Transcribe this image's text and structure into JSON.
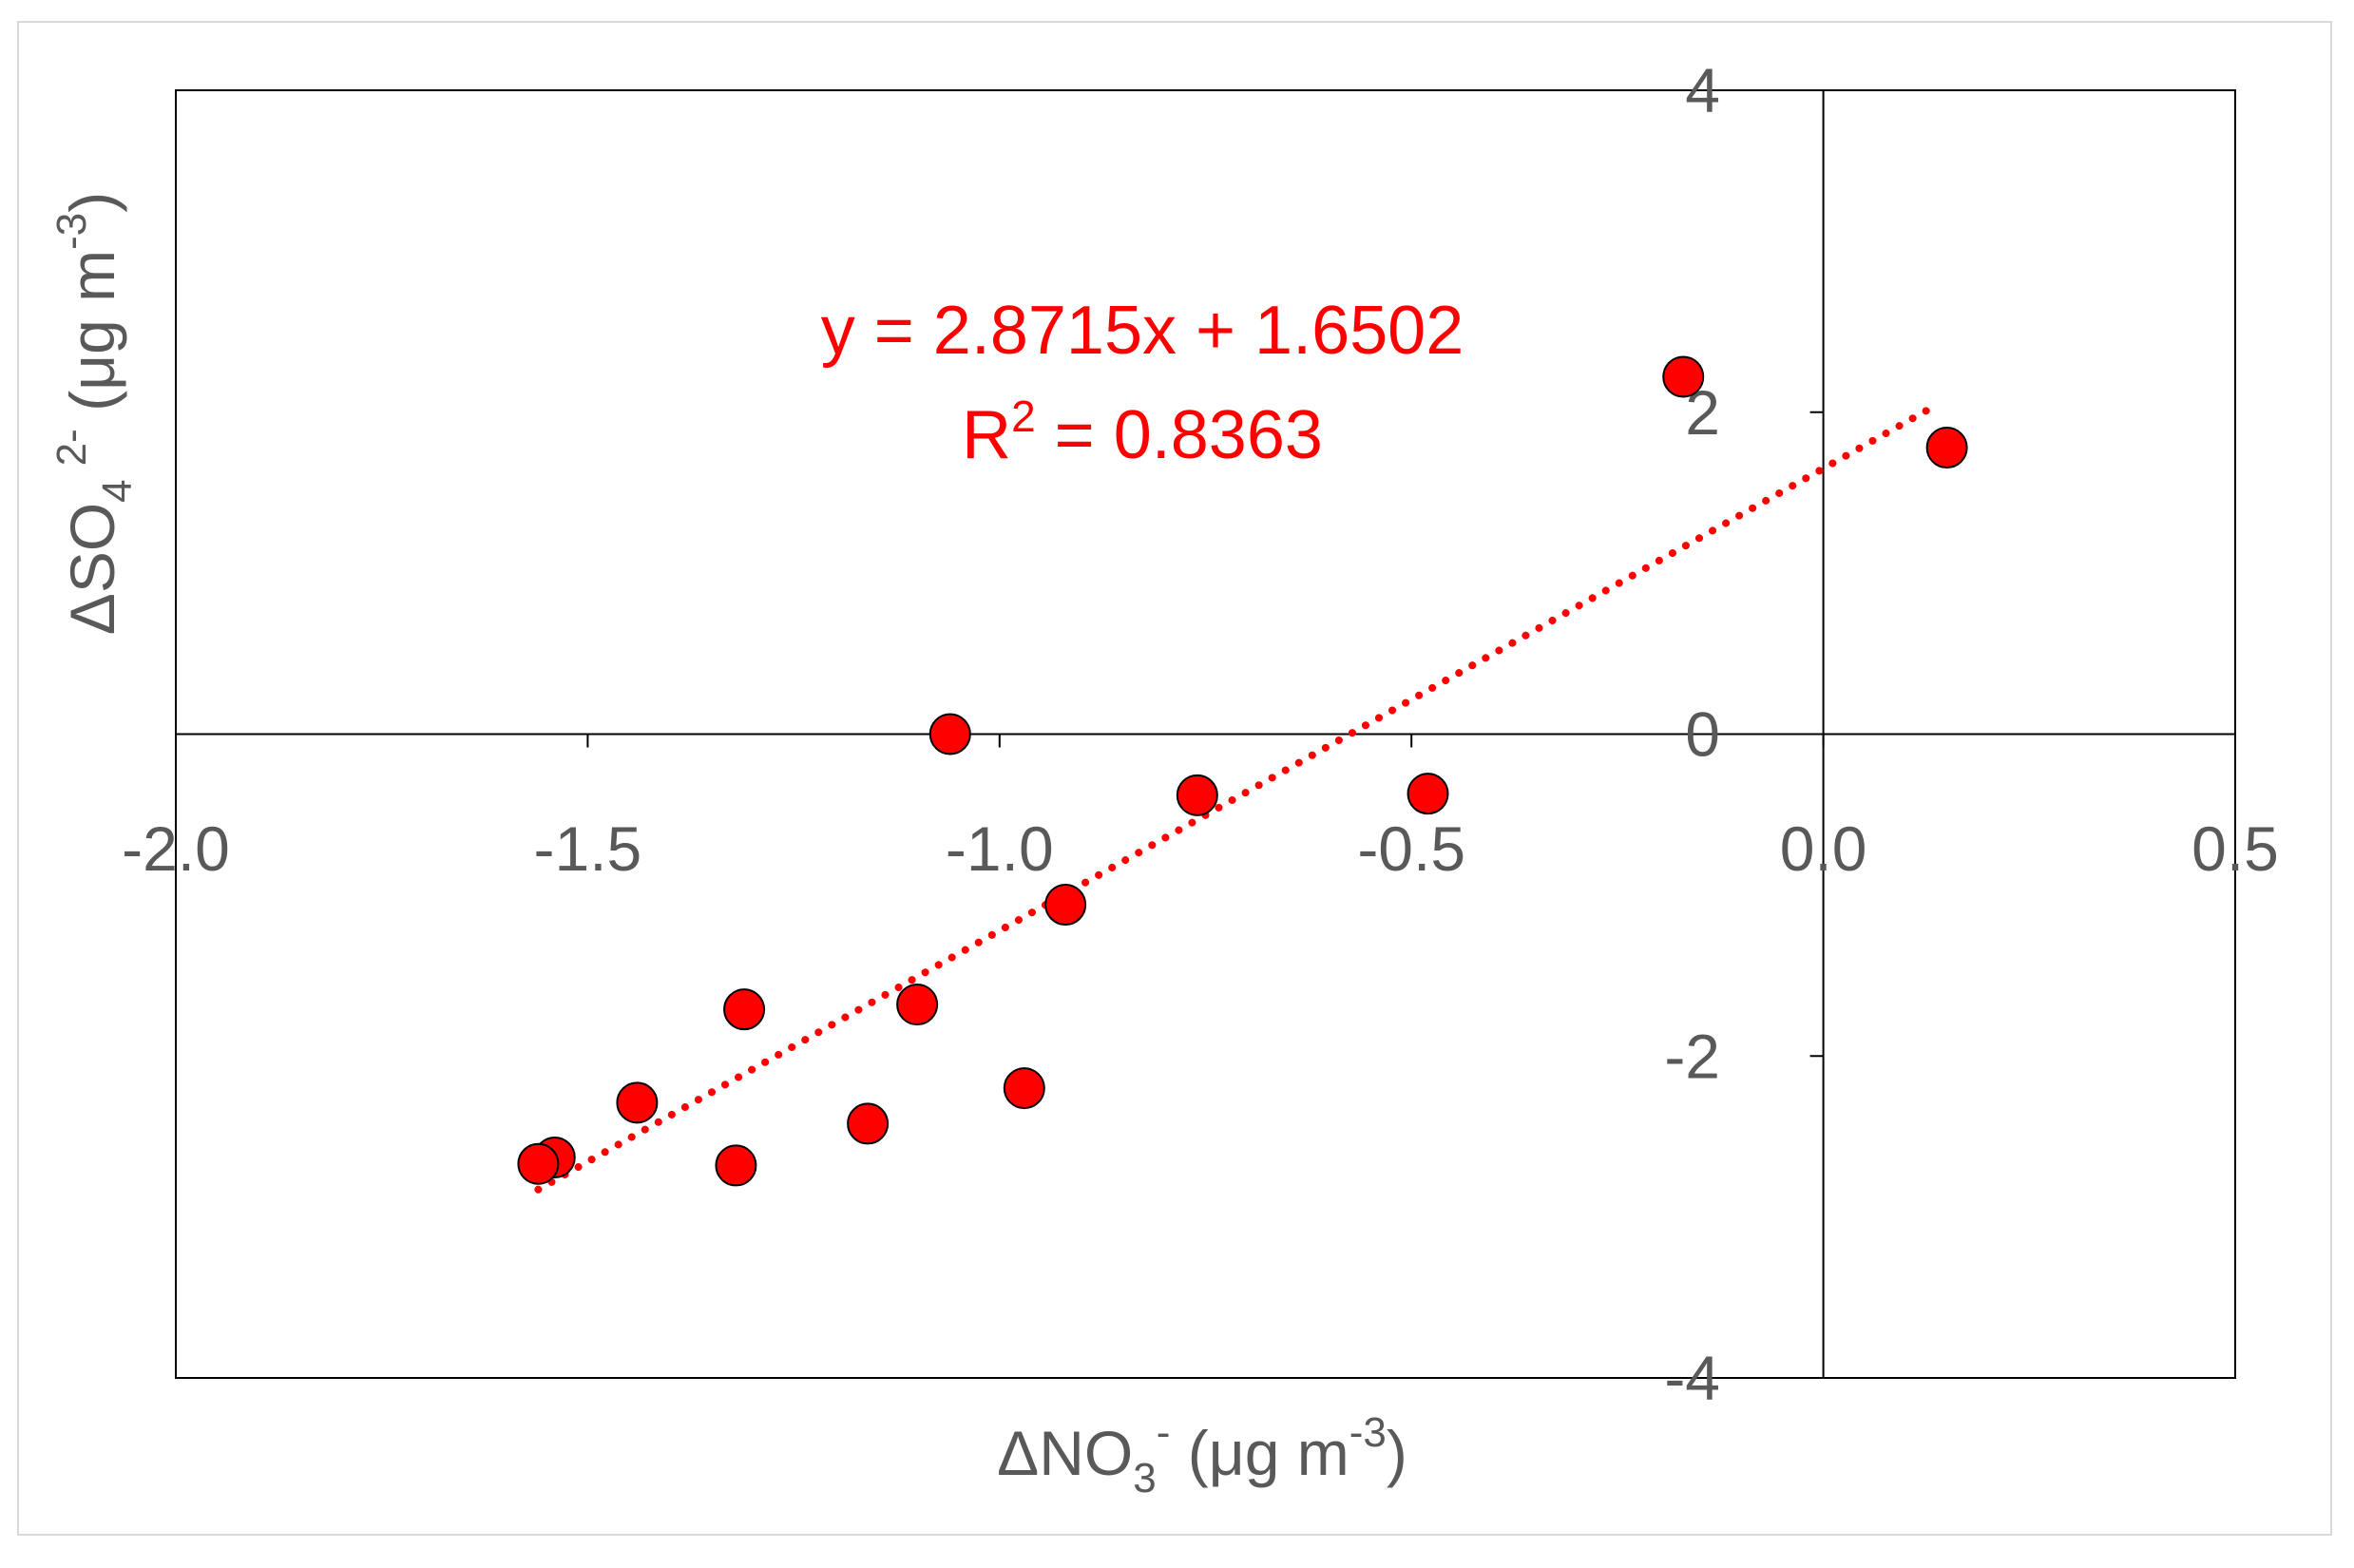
{
  "chart_data": {
    "type": "scatter",
    "title": "",
    "xlabel": {
      "prefix": "ΔNO",
      "sub": "3",
      "sup": "-",
      "unit_text": " (μg m",
      "unit_sup": "-3",
      "unit_close": ")"
    },
    "ylabel": {
      "prefix": "ΔSO",
      "sub": "4",
      "sup": "2-",
      "unit_text": " (μg m",
      "unit_sup": "-3",
      "unit_close": ")"
    },
    "xlim": [
      -2.0,
      0.5
    ],
    "ylim": [
      -4,
      4
    ],
    "x_ticks": [
      -2.0,
      -1.5,
      -1.0,
      -0.5,
      0.0,
      0.5
    ],
    "x_tick_labels": [
      "-2.0",
      "-1.5",
      "-1.0",
      "-0.5",
      "0.0",
      "0.5"
    ],
    "y_ticks": [
      -4,
      -2,
      0,
      2,
      4
    ],
    "y_tick_labels": [
      "-4",
      "-2",
      "0",
      "2",
      "4"
    ],
    "grid": false,
    "legend": "none",
    "marker_color": "#ff0000",
    "trendline_color": "#ff0000",
    "points": [
      {
        "x": 0.15,
        "y": 1.78
      },
      {
        "x": -0.17,
        "y": 2.22
      },
      {
        "x": -1.06,
        "y": 0.0
      },
      {
        "x": -0.76,
        "y": -0.38
      },
      {
        "x": -0.48,
        "y": -0.37
      },
      {
        "x": -0.92,
        "y": -1.06
      },
      {
        "x": -1.1,
        "y": -1.68
      },
      {
        "x": -1.31,
        "y": -1.71
      },
      {
        "x": -0.97,
        "y": -2.2
      },
      {
        "x": -1.16,
        "y": -2.42
      },
      {
        "x": -1.44,
        "y": -2.29
      },
      {
        "x": -1.54,
        "y": -2.63
      },
      {
        "x": -1.56,
        "y": -2.67
      },
      {
        "x": -1.32,
        "y": -2.68
      }
    ],
    "trendline": {
      "slope": 2.8715,
      "intercept": 1.6502,
      "x_range": [
        -1.56,
        0.13
      ]
    },
    "annotation": {
      "equation": "y = 2.8715x + 1.6502",
      "r2_prefix": "R",
      "r2_sup": "2",
      "r2_value": " = 0.8363"
    }
  }
}
